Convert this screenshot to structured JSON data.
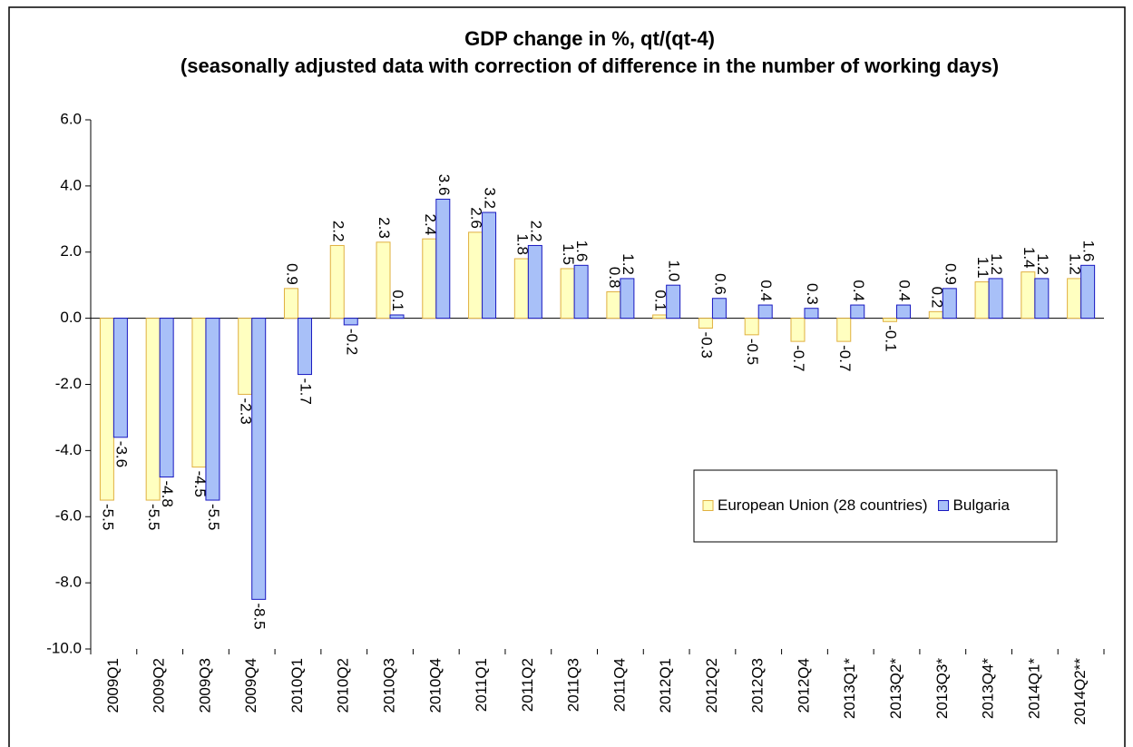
{
  "chart_data": {
    "type": "bar",
    "title": "GDP change in %, qt/(qt-4)",
    "subtitle": "(seasonally adjusted data with correction of difference in the number of working days)",
    "categories": [
      "2009Q1",
      "2009Q2",
      "2009Q3",
      "2009Q4",
      "2010Q1",
      "2010Q2",
      "2010Q3",
      "2010Q4",
      "2011Q1",
      "2011Q2",
      "2011Q3",
      "2011Q4",
      "2012Q1",
      "2012Q2",
      "2012Q3",
      "2012Q4",
      "2013Q1*",
      "2013Q2*",
      "2013Q3*",
      "2013Q4*",
      "2014Q1*",
      "2014Q2**"
    ],
    "series": [
      {
        "name": "European Union (28 countries)",
        "color": "#ffffc0",
        "edge": "#e0b040",
        "values": [
          -5.5,
          -5.5,
          -4.5,
          -2.3,
          0.9,
          2.2,
          2.3,
          2.4,
          2.6,
          1.8,
          1.5,
          0.8,
          0.1,
          -0.3,
          -0.5,
          -0.7,
          -0.7,
          -0.1,
          0.2,
          1.1,
          1.4,
          1.2
        ],
        "value_labels": [
          "-5.5",
          "-5.5",
          "-4.5",
          "-2.3",
          "0.9",
          "2.2",
          "2.3",
          "2.4",
          "2.6",
          "1.8",
          "1.5",
          "0.8",
          "0.1",
          "-0.3",
          "-0.5",
          "-0.7",
          "-0.7",
          "-0.1",
          "0.2",
          "1.1",
          "1.4",
          "1.2"
        ]
      },
      {
        "name": "Bulgaria",
        "color": "#a8c0f8",
        "edge": "#1818c0",
        "values": [
          -3.6,
          -4.8,
          -5.5,
          -8.5,
          -1.7,
          -0.2,
          0.1,
          3.6,
          3.2,
          2.2,
          1.6,
          1.2,
          1,
          0.6,
          0.4,
          0.3,
          0.4,
          0.4,
          0.9,
          1.2,
          1.2,
          1.6
        ],
        "value_labels": [
          "-3.6",
          "-4.8",
          "-5.5",
          "-8.5",
          "-1.7",
          "-0.2",
          "0.1",
          "3.6",
          "3.2",
          "2.2",
          "1.6",
          "1.2",
          "1.0",
          "0.6",
          "0.4",
          "0.3",
          "0.4",
          "0.4",
          "0.9",
          "1.2",
          "1.2",
          "1.6"
        ]
      }
    ],
    "ylim": [
      -10,
      6
    ],
    "yticks": [
      {
        "value": -10,
        "label": "-10.0"
      },
      {
        "value": -8,
        "label": "-8.0"
      },
      {
        "value": -6,
        "label": "-6.0"
      },
      {
        "value": -4,
        "label": "-4.0"
      },
      {
        "value": -2,
        "label": "-2.0"
      },
      {
        "value": 0,
        "label": "0.0"
      },
      {
        "value": 2,
        "label": "2.0"
      },
      {
        "value": 4,
        "label": "4.0"
      },
      {
        "value": 6,
        "label": "6.0"
      }
    ],
    "grid": false,
    "legend": "right"
  }
}
